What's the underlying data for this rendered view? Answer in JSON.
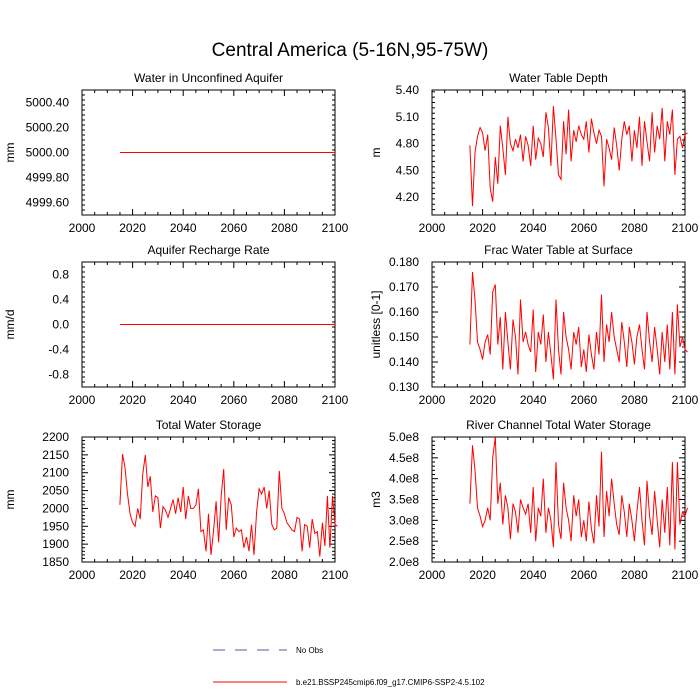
{
  "title": "Central America (5-16N,95-75W)",
  "colors": {
    "model_line": "#ff0000",
    "obs_line": "#5a5aa0",
    "axis": "#000000"
  },
  "legend": {
    "obs_label": "No Obs",
    "model_label": "b.e21.BSSP245cmip6.f09_g17.CMIP6-SSP2-4.5.102"
  },
  "chart_data": [
    {
      "type": "line",
      "title": "Water in Unconfined Aquifer",
      "xlabel": "",
      "ylabel": "mm",
      "xlim": [
        2000,
        2100
      ],
      "ylim": [
        4999.5,
        5000.5
      ],
      "xticks": [
        2000,
        2020,
        2040,
        2060,
        2080,
        2100
      ],
      "yticks": [
        4999.6,
        4999.8,
        5000.0,
        5000.2,
        5000.4
      ],
      "ytick_labels": [
        "4999.60",
        "4999.80",
        "5000.00",
        "5000.20",
        "5000.40"
      ],
      "series": [
        {
          "name": "b.e21.BSSP245cmip6.f09_g17.CMIP6-SSP2-4.5.102",
          "x_start": 2015,
          "values": [
            5000,
            5000
          ],
          "x": [
            2015,
            2100
          ]
        }
      ]
    },
    {
      "type": "line",
      "title": "Water Table Depth",
      "xlabel": "",
      "ylabel": "m",
      "xlim": [
        2000,
        2100
      ],
      "ylim": [
        4.0,
        5.4
      ],
      "xticks": [
        2000,
        2020,
        2040,
        2060,
        2080,
        2100
      ],
      "yticks": [
        4.2,
        4.5,
        4.8,
        5.1,
        5.4
      ],
      "ytick_labels": [
        "4.20",
        "4.50",
        "4.80",
        "5.10",
        "5.40"
      ],
      "series": [
        {
          "name": "b.e21.BSSP245cmip6.f09_g17.CMIP6-SSP2-4.5.102",
          "x_start": 2015,
          "values": [
            4.78,
            4.1,
            4.7,
            4.88,
            4.98,
            4.92,
            4.72,
            4.9,
            4.3,
            4.15,
            4.65,
            4.35,
            5.0,
            4.75,
            4.45,
            5.1,
            4.8,
            4.72,
            4.85,
            4.75,
            4.9,
            4.6,
            4.88,
            4.78,
            4.55,
            5.0,
            4.62,
            4.86,
            4.8,
            4.65,
            5.15,
            4.98,
            4.55,
            5.22,
            4.85,
            4.45,
            4.4,
            5.05,
            4.68,
            5.18,
            4.6,
            4.95,
            4.82,
            5.0,
            4.9,
            4.85,
            5.05,
            4.7,
            5.08,
            4.92,
            4.8,
            4.95,
            4.88,
            4.32,
            4.85,
            4.75,
            4.62,
            4.98,
            4.78,
            4.5,
            4.85,
            5.05,
            4.9,
            5.0,
            4.6,
            4.95,
            4.75,
            5.1,
            4.55,
            5.05,
            4.82,
            4.6,
            5.15,
            4.7,
            5.0,
            4.85,
            5.2,
            4.6,
            5.05,
            4.9,
            5.18,
            4.45,
            4.85,
            4.88,
            4.75,
            4.9,
            4.92
          ]
        }
      ]
    },
    {
      "type": "line",
      "title": "Aquifer Recharge Rate",
      "xlabel": "",
      "ylabel": "mm/d",
      "xlim": [
        2000,
        2100
      ],
      "ylim": [
        -1.0,
        1.0
      ],
      "xticks": [
        2000,
        2020,
        2040,
        2060,
        2080,
        2100
      ],
      "yticks": [
        -0.8,
        -0.4,
        0.0,
        0.4,
        0.8
      ],
      "ytick_labels": [
        "-0.8",
        "-0.4",
        "0.0",
        "0.4",
        "0.8"
      ],
      "series": [
        {
          "name": "b.e21.BSSP245cmip6.f09_g17.CMIP6-SSP2-4.5.102",
          "x": [
            2015,
            2100
          ],
          "values": [
            0,
            0
          ]
        }
      ]
    },
    {
      "type": "line",
      "title": "Frac Water Table at Surface",
      "xlabel": "",
      "ylabel": "unitless [0-1]",
      "xlim": [
        2000,
        2100
      ],
      "ylim": [
        0.13,
        0.18
      ],
      "xticks": [
        2000,
        2020,
        2040,
        2060,
        2080,
        2100
      ],
      "yticks": [
        0.13,
        0.14,
        0.15,
        0.16,
        0.17,
        0.18
      ],
      "ytick_labels": [
        "0.130",
        "0.140",
        "0.150",
        "0.160",
        "0.170",
        "0.180"
      ],
      "series": [
        {
          "name": "b.e21.BSSP245cmip6.f09_g17.CMIP6-SSP2-4.5.102",
          "x_start": 2015,
          "values": [
            0.147,
            0.176,
            0.165,
            0.148,
            0.145,
            0.141,
            0.148,
            0.151,
            0.143,
            0.168,
            0.171,
            0.147,
            0.158,
            0.137,
            0.16,
            0.148,
            0.137,
            0.157,
            0.15,
            0.135,
            0.165,
            0.148,
            0.152,
            0.147,
            0.144,
            0.161,
            0.136,
            0.152,
            0.147,
            0.159,
            0.14,
            0.152,
            0.143,
            0.133,
            0.165,
            0.145,
            0.135,
            0.16,
            0.15,
            0.145,
            0.137,
            0.152,
            0.147,
            0.154,
            0.138,
            0.145,
            0.136,
            0.151,
            0.143,
            0.137,
            0.152,
            0.143,
            0.167,
            0.14,
            0.155,
            0.148,
            0.16,
            0.15,
            0.145,
            0.14,
            0.156,
            0.148,
            0.138,
            0.154,
            0.148,
            0.139,
            0.15,
            0.155,
            0.145,
            0.137,
            0.16,
            0.148,
            0.14,
            0.154,
            0.145,
            0.135,
            0.152,
            0.14,
            0.155,
            0.137,
            0.16,
            0.135,
            0.163,
            0.146,
            0.15,
            0.145,
            0.144
          ]
        }
      ]
    },
    {
      "type": "line",
      "title": "Total Water Storage",
      "xlabel": "",
      "ylabel": "mm",
      "xlim": [
        2000,
        2100
      ],
      "ylim": [
        1850,
        2200
      ],
      "xticks": [
        2000,
        2020,
        2040,
        2060,
        2080,
        2100
      ],
      "yticks": [
        1850,
        1900,
        1950,
        2000,
        2050,
        2100,
        2150,
        2200
      ],
      "ytick_labels": [
        "1850",
        "1900",
        "1950",
        "2000",
        "2050",
        "2100",
        "2150",
        "2200"
      ],
      "series": [
        {
          "name": "b.e21.BSSP245cmip6.f09_g17.CMIP6-SSP2-4.5.102",
          "x_start": 2015,
          "values": [
            2010,
            2152,
            2115,
            2040,
            1985,
            1960,
            1950,
            2000,
            1970,
            2095,
            2150,
            2060,
            2090,
            1990,
            2035,
            2030,
            1945,
            2005,
            1995,
            1975,
            2000,
            2025,
            1985,
            2030,
            1990,
            2060,
            1970,
            2035,
            2000,
            2000,
            2010,
            2055,
            1935,
            1940,
            1880,
            1985,
            1870,
            1940,
            2020,
            1905,
            2035,
            2110,
            1940,
            2030,
            2010,
            1920,
            1945,
            1935,
            1940,
            1890,
            1920,
            1880,
            1955,
            1870,
            1990,
            2055,
            2040,
            2060,
            2000,
            2050,
            1955,
            1940,
            1945,
            2105,
            2000,
            1985,
            1960,
            1950,
            1940,
            1935,
            1975,
            1970,
            1880,
            1955,
            1950,
            1890,
            1970,
            1930,
            1935,
            1865,
            1960,
            1895,
            2035,
            1890,
            2035,
            1955,
            1950
          ]
        }
      ]
    },
    {
      "type": "line",
      "title": "River Channel Total Water Storage",
      "xlabel": "",
      "ylabel": "m3",
      "xlim": [
        2000,
        2100
      ],
      "ylim": [
        200000000,
        500000000
      ],
      "xticks": [
        2000,
        2020,
        2040,
        2060,
        2080,
        2100
      ],
      "yticks": [
        200000000,
        250000000,
        300000000,
        350000000,
        400000000,
        450000000,
        500000000
      ],
      "ytick_labels": [
        "2.0e8",
        "2.5e8",
        "3.0e8",
        "3.5e8",
        "4.0e8",
        "4.5e8",
        "5.0e8"
      ],
      "series": [
        {
          "name": "b.e21.BSSP245cmip6.f09_g17.CMIP6-SSP2-4.5.102",
          "x_start": 2015,
          "values": [
            340000000,
            480000000,
            420000000,
            330000000,
            310000000,
            285000000,
            300000000,
            330000000,
            300000000,
            450000000,
            500000000,
            340000000,
            390000000,
            290000000,
            360000000,
            330000000,
            255000000,
            340000000,
            320000000,
            270000000,
            350000000,
            330000000,
            315000000,
            340000000,
            270000000,
            380000000,
            250000000,
            330000000,
            310000000,
            400000000,
            270000000,
            330000000,
            300000000,
            235000000,
            440000000,
            290000000,
            255000000,
            390000000,
            330000000,
            300000000,
            250000000,
            360000000,
            310000000,
            350000000,
            260000000,
            300000000,
            250000000,
            345000000,
            280000000,
            245000000,
            360000000,
            285000000,
            465000000,
            260000000,
            370000000,
            310000000,
            400000000,
            340000000,
            290000000,
            265000000,
            360000000,
            320000000,
            260000000,
            340000000,
            300000000,
            250000000,
            320000000,
            380000000,
            300000000,
            240000000,
            395000000,
            310000000,
            265000000,
            370000000,
            300000000,
            235000000,
            350000000,
            270000000,
            380000000,
            240000000,
            440000000,
            230000000,
            440000000,
            290000000,
            320000000,
            310000000,
            330000000
          ]
        }
      ]
    }
  ]
}
